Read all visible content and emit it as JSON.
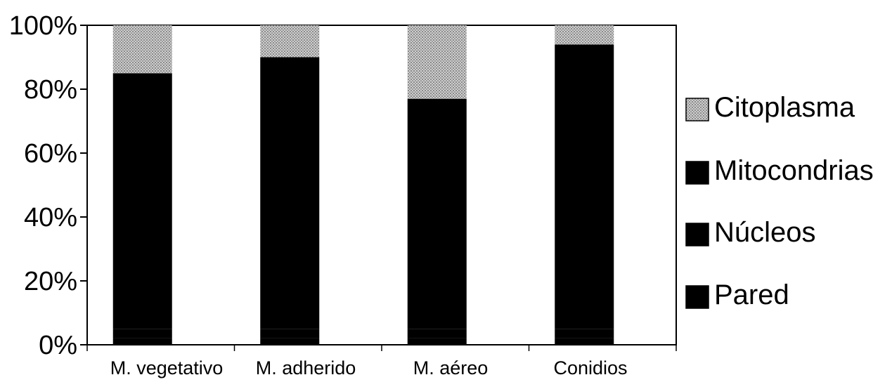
{
  "chart_data": {
    "type": "bar",
    "stacked": true,
    "normalized_percent": true,
    "categories": [
      "M. vegetativo",
      "M. adherido",
      "M. aéreo",
      "Conidios"
    ],
    "series": [
      {
        "name": "Pared",
        "values": [
          2,
          2,
          2,
          2
        ],
        "color": "#000000"
      },
      {
        "name": "Núcleos",
        "values": [
          3,
          3,
          3,
          3
        ],
        "color": "#000000"
      },
      {
        "name": "Mitocondrias",
        "values": [
          80,
          85,
          72,
          89
        ],
        "color": "#000000"
      },
      {
        "name": "Citoplasma",
        "values": [
          15,
          10,
          23,
          6
        ],
        "color": "#999999"
      }
    ],
    "ylim": [
      0,
      100
    ],
    "yticks": [
      "0%",
      "20%",
      "40%",
      "60%",
      "80%",
      "100%"
    ],
    "grid": false,
    "legend_position": "right",
    "legend_order": [
      "Citoplasma",
      "Mitocondrias",
      "Núcleos",
      "Pared"
    ],
    "title": "",
    "xlabel": "",
    "ylabel": ""
  }
}
